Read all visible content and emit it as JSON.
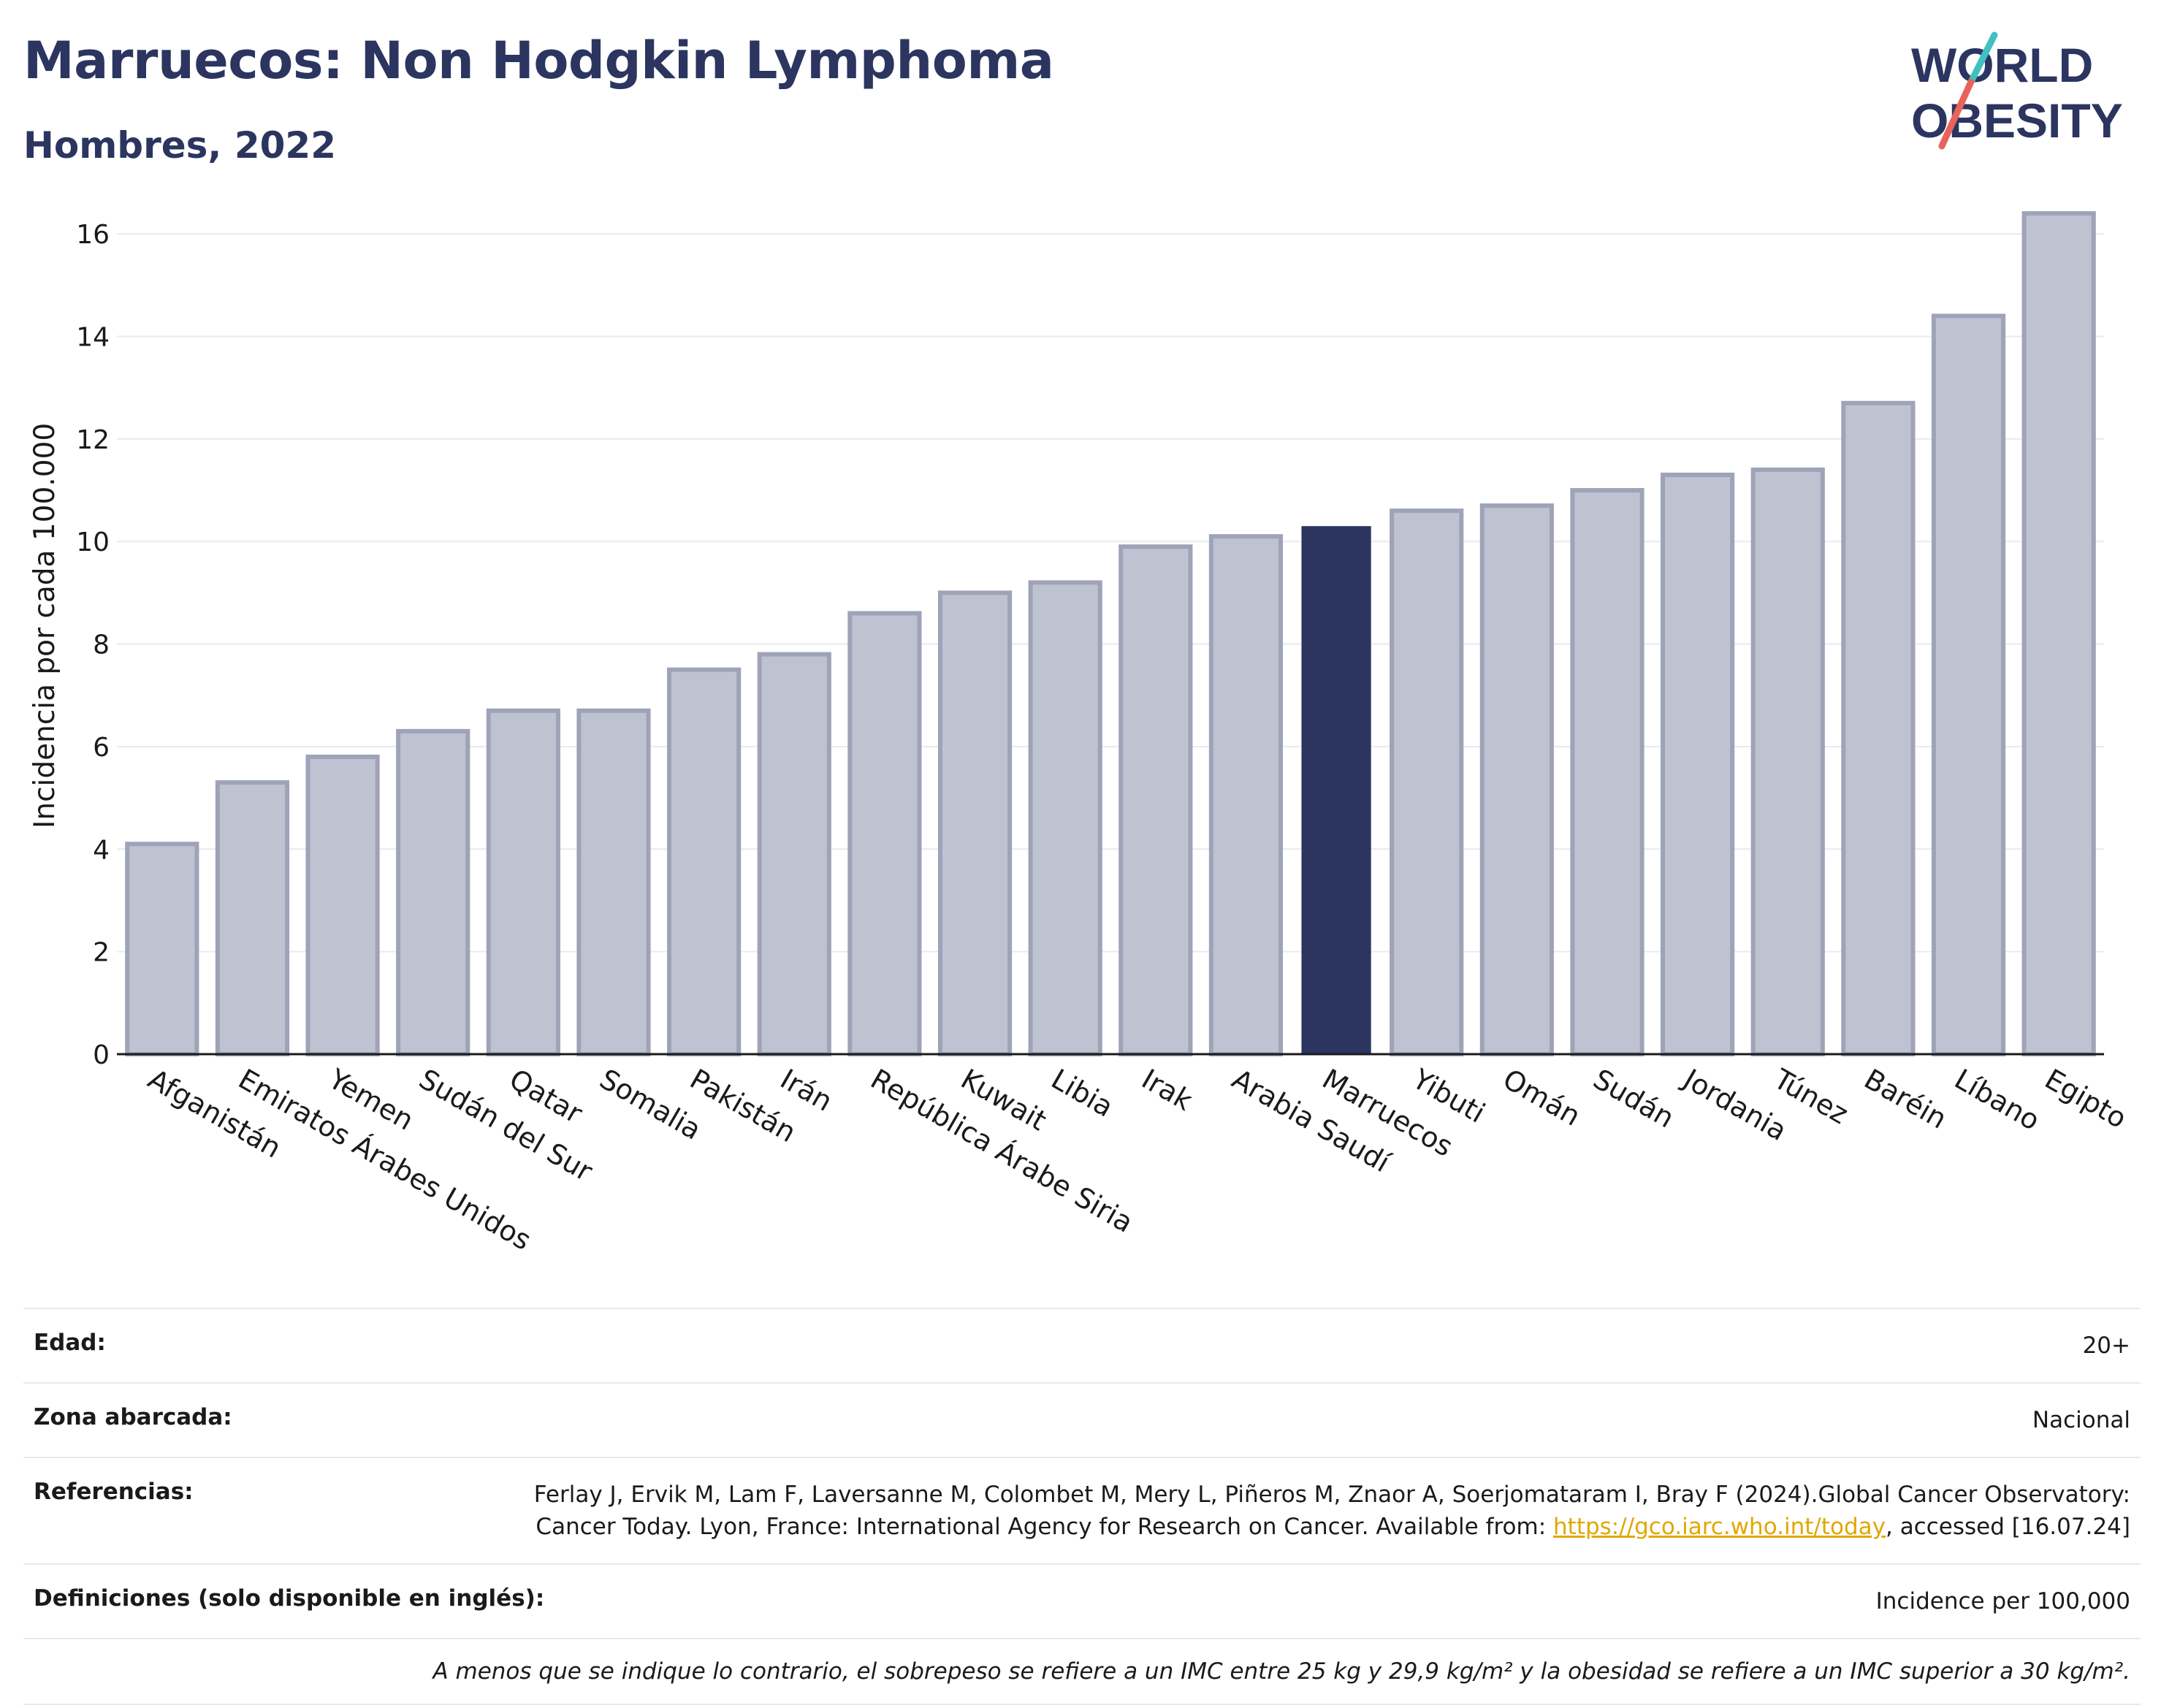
{
  "header": {
    "title": "Marruecos: Non Hodgkin Lymphoma",
    "subtitle": "Hombres, 2022"
  },
  "logo": {
    "line1": "WORLD",
    "line2": "OBESITY",
    "colors": {
      "text": "#2b3560",
      "slash_top": "#3fc1c0",
      "slash_bottom": "#e8645a"
    }
  },
  "colors": {
    "bar_default": "#bfc2d1",
    "bar_border": "#9ea3b8",
    "bar_highlight": "#2b3560",
    "grid": "#e8eaf0",
    "axis_text": "#1a1a1a"
  },
  "chart_data": {
    "type": "bar",
    "ylabel": "Incidencia por cada 100.000",
    "xlabel": "",
    "ylim": [
      0,
      17
    ],
    "yticks": [
      0,
      2,
      4,
      6,
      8,
      10,
      12,
      14,
      16
    ],
    "grid": true,
    "highlight": "Marruecos",
    "categories": [
      "Afganistán",
      "Emiratos Árabes Unidos",
      "Yemen",
      "Sudán del Sur",
      "Qatar",
      "Somalia",
      "Pakistán",
      "Irán",
      "República Árabe Siria",
      "Kuwait",
      "Libia",
      "Irak",
      "Arabia Saudí",
      "Marruecos",
      "Yibuti",
      "Omán",
      "Sudán",
      "Jordania",
      "Túnez",
      "Baréin",
      "Líbano",
      "Egipto"
    ],
    "values": [
      4.1,
      5.3,
      5.8,
      6.3,
      6.7,
      6.7,
      7.5,
      7.8,
      8.6,
      9.0,
      9.2,
      9.9,
      10.1,
      10.3,
      10.6,
      10.7,
      11.0,
      11.3,
      11.4,
      12.7,
      14.4,
      16.4
    ]
  },
  "info": {
    "age_label": "Edad:",
    "age_value": "20+",
    "area_label": "Zona abarcada:",
    "area_value": "Nacional",
    "refs_label": "Referencias:",
    "refs_text_1": "Ferlay J, Ervik M, Lam F, Laversanne M, Colombet M, Mery L, Piñeros M, Znaor A, Soerjomataram I, Bray F (2024).Global Cancer Observatory: Cancer Today. Lyon, France: International Agency for Research on Cancer. Available from: ",
    "refs_link": "https://gco.iarc.who.int/today",
    "refs_text_2": ", accessed [16.07.24]",
    "defs_label": "Definiciones (solo disponible en inglés):",
    "defs_value": "Incidence per 100,000",
    "note": "A menos que se indique lo contrario, el sobrepeso se refiere a un IMC entre 25 kg y 29,9 kg/m² y la obesidad se refiere a un IMC superior a 30 kg/m²."
  }
}
